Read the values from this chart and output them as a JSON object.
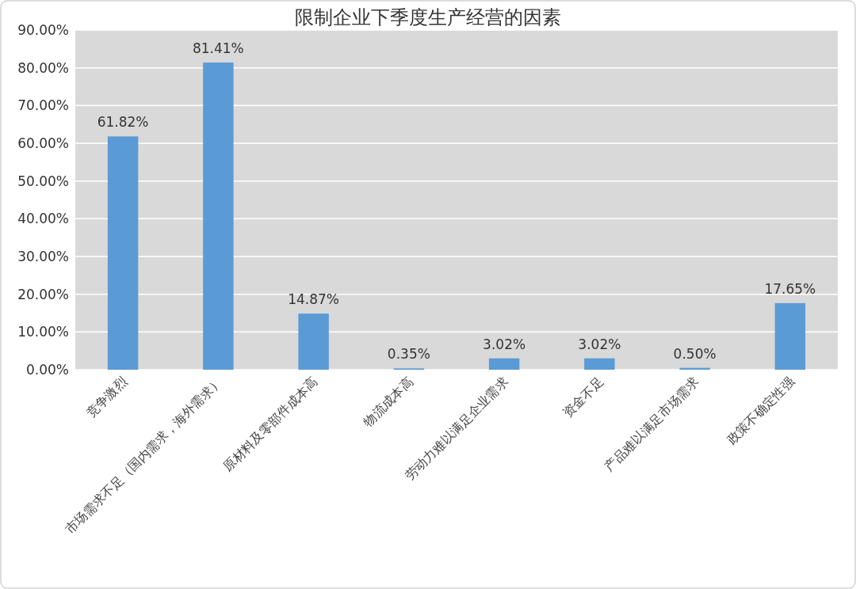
{
  "chart_data": {
    "type": "bar",
    "title": "限制企业下季度生产经营的因素",
    "categories": [
      "竞争激烈",
      "市场需求不足（国内需求，海外需求）",
      "原材料及零部件成本高",
      "物流成本高",
      "劳动力难以满足企业需求",
      "资金不足",
      "产品难以满足市场需求",
      "政策不确定性强"
    ],
    "values": [
      61.82,
      81.41,
      14.87,
      0.35,
      3.02,
      3.02,
      0.5,
      17.65
    ],
    "value_labels": [
      "61.82%",
      "81.41%",
      "14.87%",
      "0.35%",
      "3.02%",
      "3.02%",
      "0.50%",
      "17.65%"
    ],
    "color": "#5b9bd5",
    "ylim": [
      0,
      90
    ],
    "yticks": [
      {
        "value": 0,
        "label": "0.00%"
      },
      {
        "value": 10,
        "label": "10.00%"
      },
      {
        "value": 20,
        "label": "20.00%"
      },
      {
        "value": 30,
        "label": "30.00%"
      },
      {
        "value": 40,
        "label": "40.00%"
      },
      {
        "value": 50,
        "label": "50.00%"
      },
      {
        "value": 60,
        "label": "60.00%"
      },
      {
        "value": 70,
        "label": "70.00%"
      },
      {
        "value": 80,
        "label": "80.00%"
      },
      {
        "value": 90,
        "label": "90.00%"
      }
    ],
    "grid": "y"
  }
}
